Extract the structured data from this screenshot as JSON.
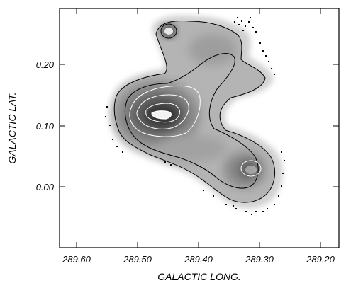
{
  "figure": {
    "xlabel": "GALACTIC LONG.",
    "ylabel": "GALACTIC LAT.",
    "x_ticks": [
      "289.60",
      "289.50",
      "289.40",
      "289.30",
      "289.20"
    ],
    "y_ticks": [
      "0.20",
      "0.10",
      "0.00"
    ],
    "x_range": [
      289.64,
      289.18
    ],
    "y_range": [
      -0.1,
      0.29
    ]
  }
}
